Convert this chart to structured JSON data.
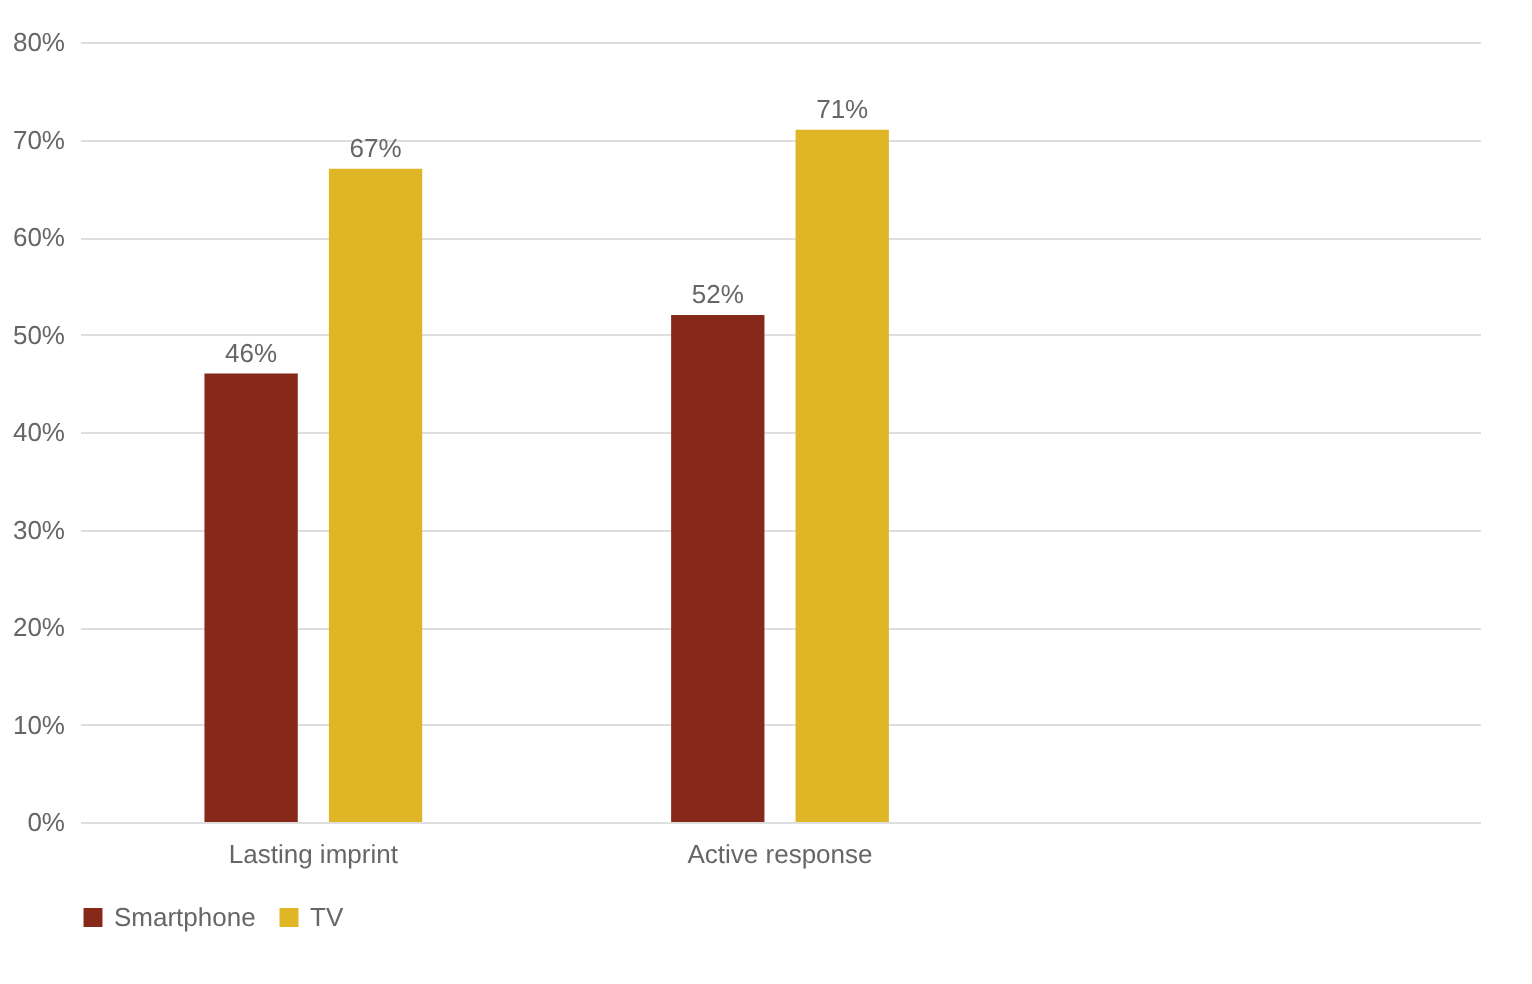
{
  "chart_data": {
    "type": "bar",
    "categories": [
      "Lasting imprint",
      "Active response",
      null
    ],
    "series": [
      {
        "name": "Smartphone",
        "color": "#86281a",
        "values": [
          46,
          52,
          null
        ],
        "value_labels": [
          "46%",
          "52%",
          null
        ]
      },
      {
        "name": "TV",
        "color": "#e0b526",
        "values": [
          67,
          71,
          null
        ],
        "value_labels": [
          "67%",
          "71%",
          null
        ]
      }
    ],
    "ylim": [
      0,
      80
    ],
    "yticks": [
      {
        "value": 0,
        "label": "0%"
      },
      {
        "value": 10,
        "label": "10%"
      },
      {
        "value": 20,
        "label": "20%"
      },
      {
        "value": 30,
        "label": "30%"
      },
      {
        "value": 40,
        "label": "40%"
      },
      {
        "value": 50,
        "label": "50%"
      },
      {
        "value": 60,
        "label": "60%"
      },
      {
        "value": 70,
        "label": "70%"
      },
      {
        "value": 80,
        "label": "80%"
      }
    ],
    "grid": "y",
    "legend": "bottom"
  }
}
